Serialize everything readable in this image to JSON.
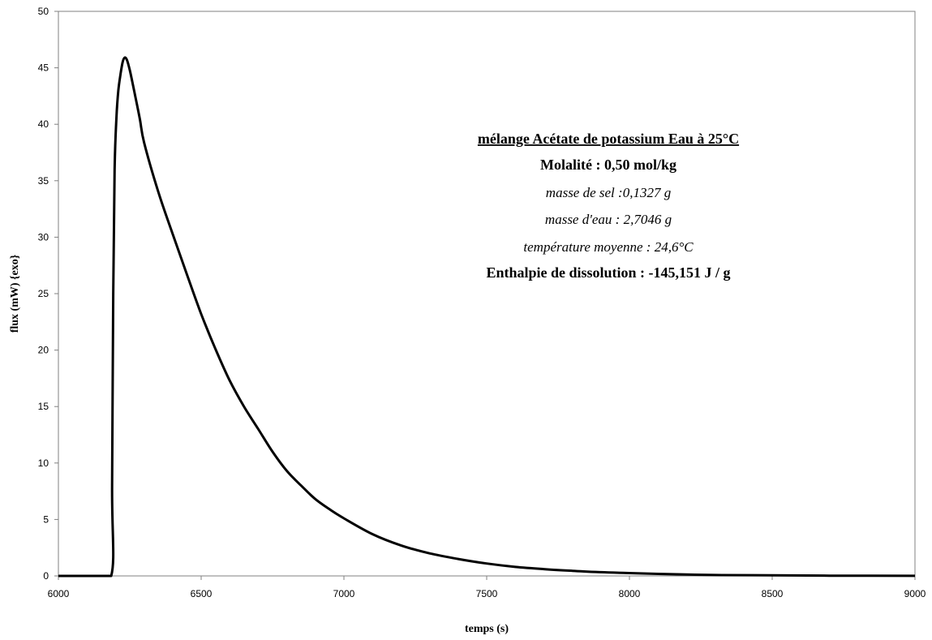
{
  "chart_data": {
    "type": "line",
    "title": "",
    "xlabel": "temps (s)",
    "ylabel": "flux (mW) {exo}",
    "xlim": [
      6000,
      9000
    ],
    "ylim": [
      0,
      50
    ],
    "xticks": [
      6000,
      6500,
      7000,
      7500,
      8000,
      8500,
      9000
    ],
    "yticks": [
      0,
      5,
      10,
      15,
      20,
      25,
      30,
      35,
      40,
      45,
      50
    ],
    "grid": false,
    "legend": "none",
    "colors": {
      "line": "#000000",
      "axes": "#808080",
      "background": "#ffffff"
    },
    "annotations": [
      {
        "text": "mélange Acétate de potassium Eau à 25°C",
        "style": "bold-underline"
      },
      {
        "text": "Molalité : 0,50 mol/kg",
        "style": "bold"
      },
      {
        "text": "masse de sel :0,1327 g",
        "style": "italic"
      },
      {
        "text": "masse d'eau : 2,7046 g",
        "style": "italic"
      },
      {
        "text": "température moyenne : 24,6°C",
        "style": "italic"
      },
      {
        "text": "Enthalpie de dissolution : -145,151 J / g",
        "style": "bold"
      }
    ],
    "series": [
      {
        "x": [
          6000,
          6100,
          6185,
          6188,
          6192,
          6197,
          6203,
          6210,
          6218,
          6225,
          6232,
          6240,
          6250,
          6265,
          6285,
          6300,
          6350,
          6400,
          6450,
          6500,
          6550,
          6600,
          6650,
          6700,
          6750,
          6800,
          6850,
          6900,
          6950,
          7000,
          7100,
          7200,
          7300,
          7400,
          7500,
          7600,
          7700,
          7800,
          7900,
          8000,
          8100,
          8200,
          8300,
          8500,
          8700,
          9000
        ],
        "y": [
          0,
          0,
          0,
          8,
          25,
          36,
          40.5,
          43,
          44.5,
          45.5,
          45.9,
          45.7,
          44.8,
          43,
          40.5,
          38.4,
          34,
          30.3,
          26.7,
          23.2,
          20.1,
          17.3,
          15,
          13,
          11,
          9.3,
          8,
          6.8,
          5.9,
          5.1,
          3.7,
          2.7,
          2,
          1.5,
          1.1,
          0.8,
          0.6,
          0.45,
          0.33,
          0.25,
          0.18,
          0.12,
          0.08,
          0.05,
          0.02,
          0.01
        ]
      }
    ]
  }
}
